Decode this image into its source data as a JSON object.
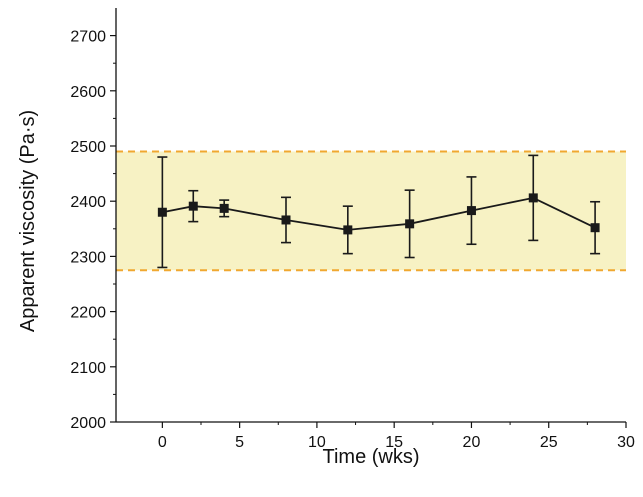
{
  "chart_data": {
    "type": "line",
    "title": "",
    "xlabel": "Time (wks)",
    "ylabel": "Apparent viscosity (Pa·s)",
    "xlim": [
      -3,
      30
    ],
    "ylim": [
      2000,
      2750
    ],
    "xticks": [
      0,
      5,
      10,
      15,
      20,
      25,
      30
    ],
    "yticks": [
      2000,
      2100,
      2200,
      2300,
      2400,
      2500,
      2600,
      2700
    ],
    "grid": false,
    "legend": "none",
    "band": {
      "lower": 2275,
      "upper": 2490,
      "fill_color": "#f7f2c4",
      "line_color": "#f0a830"
    },
    "series": [
      {
        "color": "#1a1a1a",
        "marker": "square",
        "x": [
          0,
          2,
          4,
          8,
          12,
          16,
          20,
          24,
          28
        ],
        "y": [
          2380,
          2391,
          2387,
          2366,
          2348,
          2359,
          2383,
          2406,
          2352
        ],
        "err": [
          100,
          28,
          15,
          41,
          43,
          61,
          61,
          77,
          47
        ]
      }
    ]
  }
}
